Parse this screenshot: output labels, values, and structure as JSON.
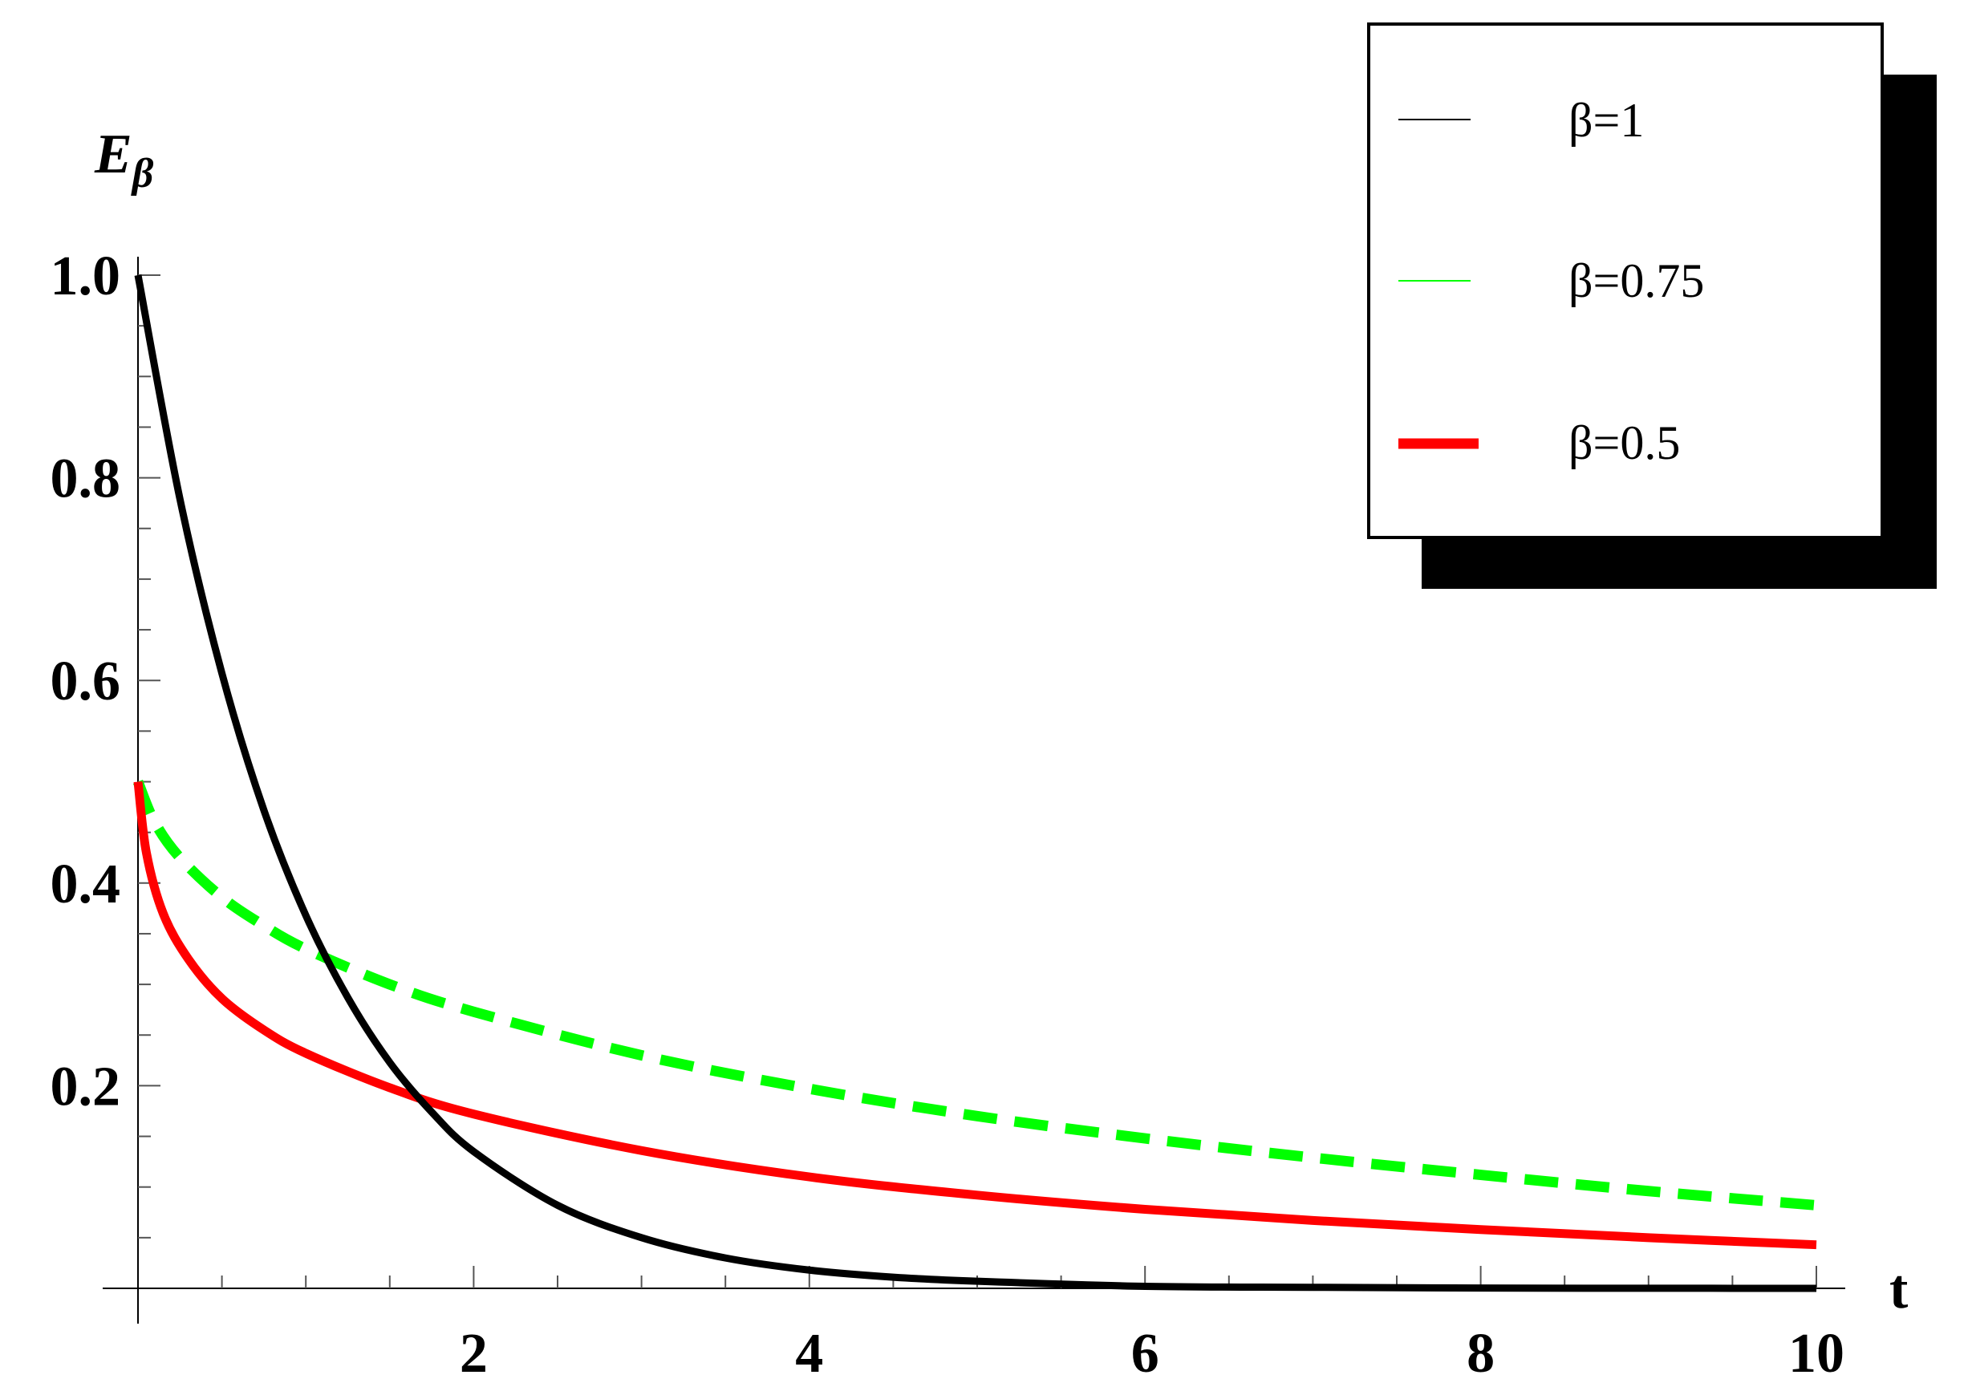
{
  "chart_data": {
    "type": "line",
    "title": "",
    "xlabel": "t",
    "ylabel_main": "E",
    "ylabel_sub": "β",
    "xlim": [
      0,
      10
    ],
    "ylim": [
      0,
      1.0
    ],
    "x_ticks": [
      2,
      4,
      6,
      8,
      10
    ],
    "x_tick_labels": [
      "2",
      "4",
      "6",
      "8",
      "10"
    ],
    "y_ticks": [
      0.2,
      0.4,
      0.6,
      0.8,
      1.0
    ],
    "y_tick_labels": [
      "0.2",
      "0.4",
      "0.6",
      "0.8",
      "1.0"
    ],
    "grid": false,
    "legend_position": "top-right",
    "series": [
      {
        "name": "β=1",
        "color": "#000000",
        "dash": "solid",
        "x": [
          0,
          0.25,
          0.5,
          0.75,
          1,
          1.25,
          1.5,
          1.75,
          2,
          2.5,
          3,
          3.5,
          4,
          4.5,
          5,
          6,
          7,
          8,
          9,
          10
        ],
        "y": [
          1.0,
          0.779,
          0.607,
          0.472,
          0.368,
          0.287,
          0.223,
          0.174,
          0.135,
          0.082,
          0.05,
          0.03,
          0.018,
          0.011,
          0.007,
          0.002,
          0.001,
          0.0003,
          0.0001,
          0.0
        ]
      },
      {
        "name": "β=0.75",
        "color": "#00ff00",
        "dash": "dashed",
        "x": [
          0,
          0.1,
          0.25,
          0.5,
          0.75,
          1,
          1.5,
          2,
          3,
          4,
          5,
          6,
          7,
          8,
          9,
          10
        ],
        "y": [
          0.5,
          0.46,
          0.425,
          0.386,
          0.358,
          0.335,
          0.3,
          0.273,
          0.23,
          0.197,
          0.17,
          0.148,
          0.129,
          0.112,
          0.096,
          0.082
        ]
      },
      {
        "name": "β=0.5",
        "color": "#ff0000",
        "dash": "solid",
        "x": [
          0,
          0.05,
          0.15,
          0.3,
          0.5,
          0.75,
          1,
          1.5,
          2,
          3,
          4,
          5,
          6,
          7,
          8,
          9,
          10
        ],
        "y": [
          0.5,
          0.43,
          0.37,
          0.325,
          0.286,
          0.255,
          0.232,
          0.198,
          0.172,
          0.136,
          0.11,
          0.092,
          0.078,
          0.067,
          0.058,
          0.05,
          0.043
        ]
      }
    ]
  }
}
